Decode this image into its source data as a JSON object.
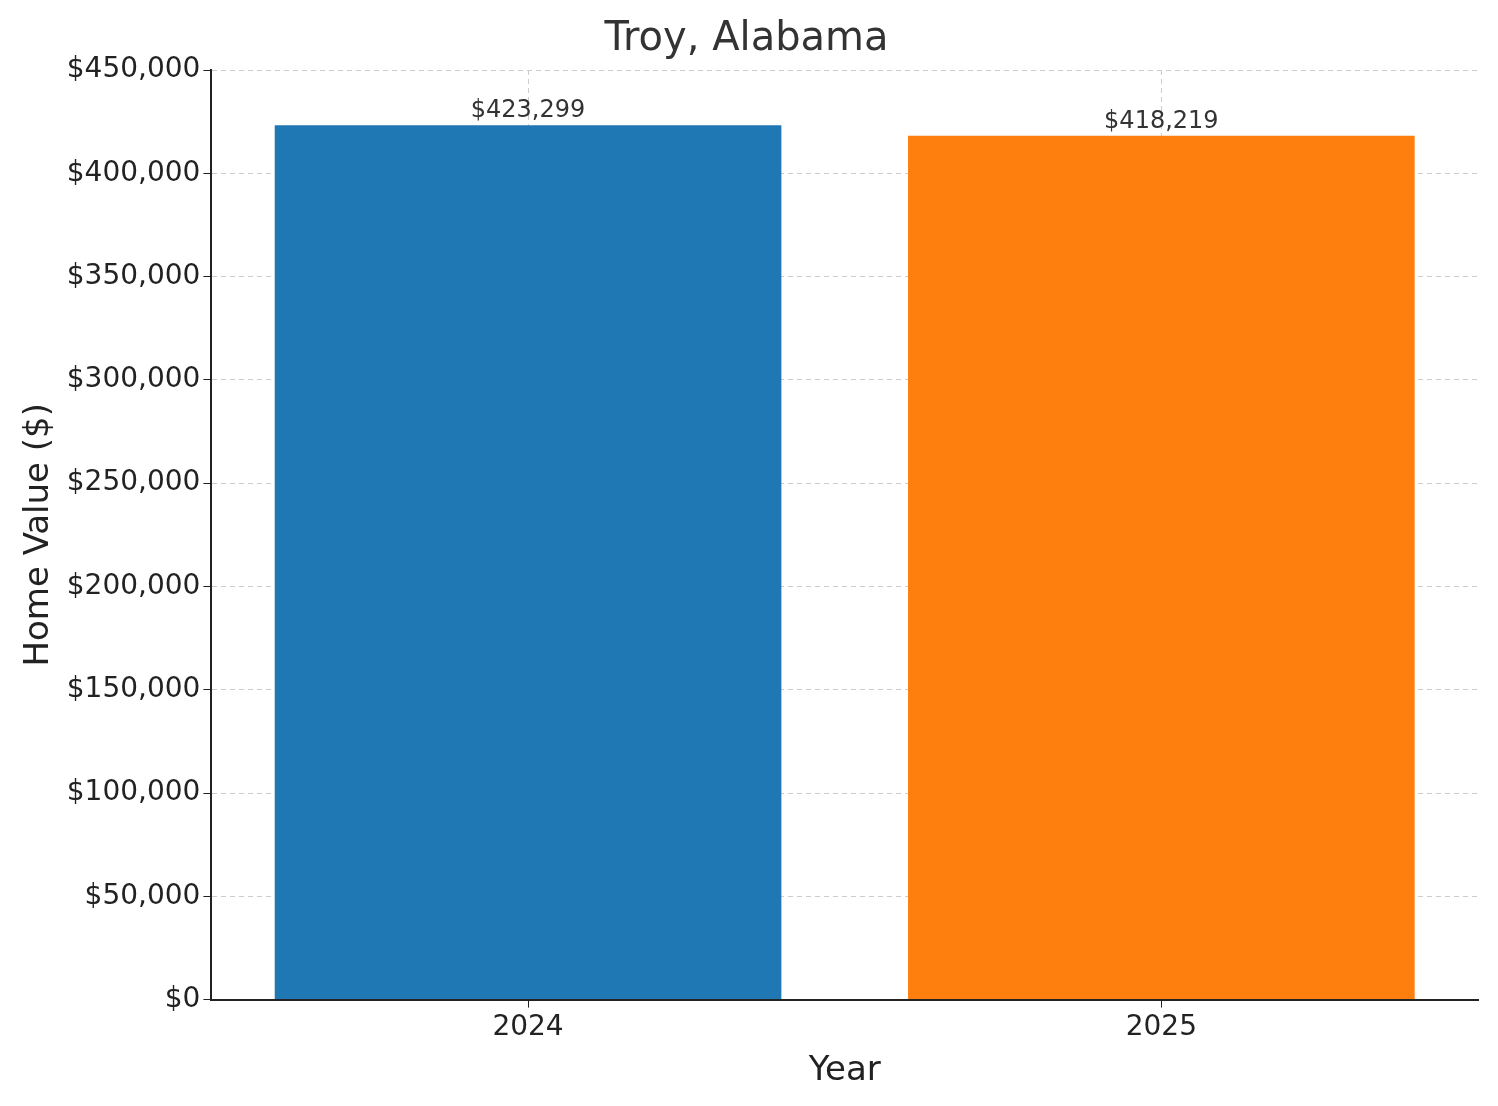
{
  "chart_data": {
    "type": "bar",
    "title": "Troy, Alabama",
    "x_label": "Year",
    "y_label": "Home Value ($)",
    "categories": [
      "2024",
      "2025"
    ],
    "values": [
      423299,
      418219
    ],
    "value_labels": [
      "$423,299",
      "$418,219"
    ],
    "colors": [
      "#1f77b4",
      "#ff7f0e"
    ],
    "ylim": [
      0,
      450000
    ],
    "yticks": [
      {
        "value": 0,
        "label": "$0"
      },
      {
        "value": 50000,
        "label": "$50,000"
      },
      {
        "value": 100000,
        "label": "$100,000"
      },
      {
        "value": 150000,
        "label": "$150,000"
      },
      {
        "value": 200000,
        "label": "$200,000"
      },
      {
        "value": 250000,
        "label": "$250,000"
      },
      {
        "value": 300000,
        "label": "$300,000"
      },
      {
        "value": 350000,
        "label": "$350,000"
      },
      {
        "value": 400000,
        "label": "$400,000"
      },
      {
        "value": 450000,
        "label": "$450,000"
      }
    ],
    "grid": true,
    "data_labels": true
  }
}
